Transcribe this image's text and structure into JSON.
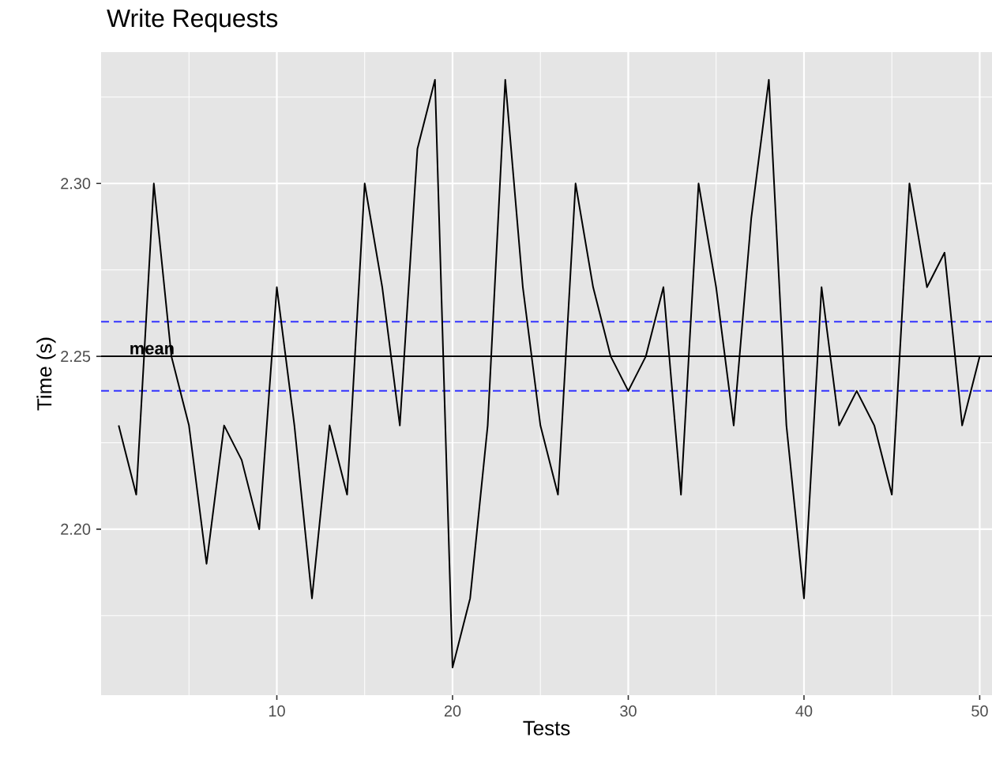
{
  "chart_data": {
    "type": "line",
    "title": "Write Requests",
    "xlabel": "Tests",
    "ylabel": "Time (s)",
    "x": [
      1,
      2,
      3,
      4,
      5,
      6,
      7,
      8,
      9,
      10,
      11,
      12,
      13,
      14,
      15,
      16,
      17,
      18,
      19,
      20,
      21,
      22,
      23,
      24,
      25,
      26,
      27,
      28,
      29,
      30,
      31,
      32,
      33,
      34,
      35,
      36,
      37,
      38,
      39,
      40,
      41,
      42,
      43,
      44,
      45,
      46,
      47,
      48,
      49,
      50
    ],
    "series": [
      {
        "color": "#000000",
        "values": [
          2.23,
          2.21,
          2.3,
          2.25,
          2.23,
          2.19,
          2.23,
          2.22,
          2.2,
          2.27,
          2.23,
          2.18,
          2.23,
          2.21,
          2.3,
          2.27,
          2.23,
          2.31,
          2.33,
          2.16,
          2.18,
          2.23,
          2.33,
          2.27,
          2.23,
          2.21,
          2.3,
          2.27,
          2.25,
          2.24,
          2.25,
          2.27,
          2.21,
          2.3,
          2.27,
          2.23,
          2.29,
          2.33,
          2.23,
          2.18,
          2.27,
          2.23,
          2.24,
          2.23,
          2.21,
          2.3,
          2.27,
          2.28,
          2.23,
          2.25
        ]
      }
    ],
    "xlim": [
      0,
      50.7
    ],
    "ylim": [
      2.152,
      2.338
    ],
    "xticks": [
      10,
      20,
      30,
      40,
      50
    ],
    "yticks": [
      {
        "value": 2.2,
        "label": "2.20"
      },
      {
        "value": 2.25,
        "label": "2.25"
      },
      {
        "value": 2.3,
        "label": "2.30"
      }
    ],
    "ref_lines": [
      {
        "axis": "y",
        "value": 2.25,
        "label": "mean",
        "color": "#000000",
        "line_style": "solid"
      },
      {
        "axis": "y",
        "value": 2.26,
        "color": "#3333ff",
        "line_style": "dashed"
      },
      {
        "axis": "y",
        "value": 2.24,
        "color": "#3333ff",
        "line_style": "dashed"
      }
    ],
    "grid": true,
    "marker": "none",
    "line_style": "solid"
  }
}
